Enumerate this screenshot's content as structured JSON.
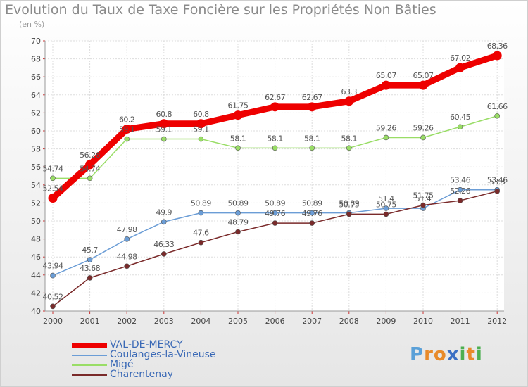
{
  "title": "Evolution du Taux de Taxe Foncière sur les Propriétés Non Bâties",
  "subtitle": "(en %)",
  "logo": {
    "letters": [
      "P",
      "r",
      "o",
      "x",
      "i",
      "t",
      "i"
    ],
    "colors": [
      "#5aa0d8",
      "#e88a2a",
      "#e88a2a",
      "#3b6fc4",
      "#4caf50",
      "#e88a2a",
      "#4caf50"
    ]
  },
  "chart_data": {
    "type": "line",
    "title": "Evolution du Taux de Taxe Foncière sur les Propriétés Non Bâties",
    "ylabel": "(en %)",
    "xlabel": "",
    "ylim": [
      40,
      70
    ],
    "yticks": [
      "40",
      "42",
      "44",
      "46",
      "48",
      "50",
      "52",
      "54",
      "56",
      "58",
      "60",
      "62",
      "64",
      "66",
      "68",
      "70"
    ],
    "categories": [
      "2000",
      "2001",
      "2002",
      "2003",
      "2004",
      "2005",
      "2006",
      "2007",
      "2008",
      "2009",
      "2010",
      "2011",
      "2012"
    ],
    "series": [
      {
        "name": "VAL-DE-MERCY",
        "color": "#ee0000",
        "values": [
          52.54,
          56.26,
          60.2,
          60.8,
          60.8,
          61.75,
          62.67,
          62.67,
          63.3,
          65.07,
          65.07,
          67.02,
          68.36
        ],
        "labels": [
          "52.54",
          "56.26",
          "60.2",
          "60.8",
          "60.8",
          "61.75",
          "62.67",
          "62.67",
          "63.3",
          "65.07",
          "65.07",
          "67.02",
          "68.36"
        ]
      },
      {
        "name": "Coulanges-la-Vineuse",
        "color": "#6b9dd6",
        "values": [
          43.94,
          45.7,
          47.98,
          49.9,
          50.89,
          50.89,
          50.89,
          50.89,
          50.89,
          51.4,
          51.4,
          53.46,
          53.46
        ],
        "labels": [
          "43.94",
          "45.7",
          "47.98",
          "49.9",
          "50.89",
          "50.89",
          "50.89",
          "50.89",
          "50.89",
          "51.4",
          "51.4",
          "53.46",
          "53.46"
        ]
      },
      {
        "name": "Migé",
        "color": "#99dd66",
        "values": [
          54.74,
          54.74,
          59.1,
          59.1,
          59.1,
          58.1,
          58.1,
          58.1,
          58.1,
          59.26,
          59.26,
          60.45,
          61.66
        ],
        "labels": [
          "54.74",
          "54.74",
          "59.1",
          "59.1",
          "59.1",
          "58.1",
          "58.1",
          "58.1",
          "58.1",
          "59.26",
          "59.26",
          "60.45",
          "61.66"
        ]
      },
      {
        "name": "Charentenay",
        "color": "#7a2a2a",
        "values": [
          40.52,
          43.68,
          44.98,
          46.33,
          47.6,
          48.79,
          49.76,
          49.76,
          50.75,
          50.75,
          51.75,
          52.26,
          53.3
        ],
        "labels": [
          "40.52",
          "43.68",
          "44.98",
          "46.33",
          "47.6",
          "48.79",
          "49.76",
          "49.76",
          "50.75",
          "50.75",
          "51.75",
          "52.26",
          "53.3"
        ]
      }
    ]
  }
}
